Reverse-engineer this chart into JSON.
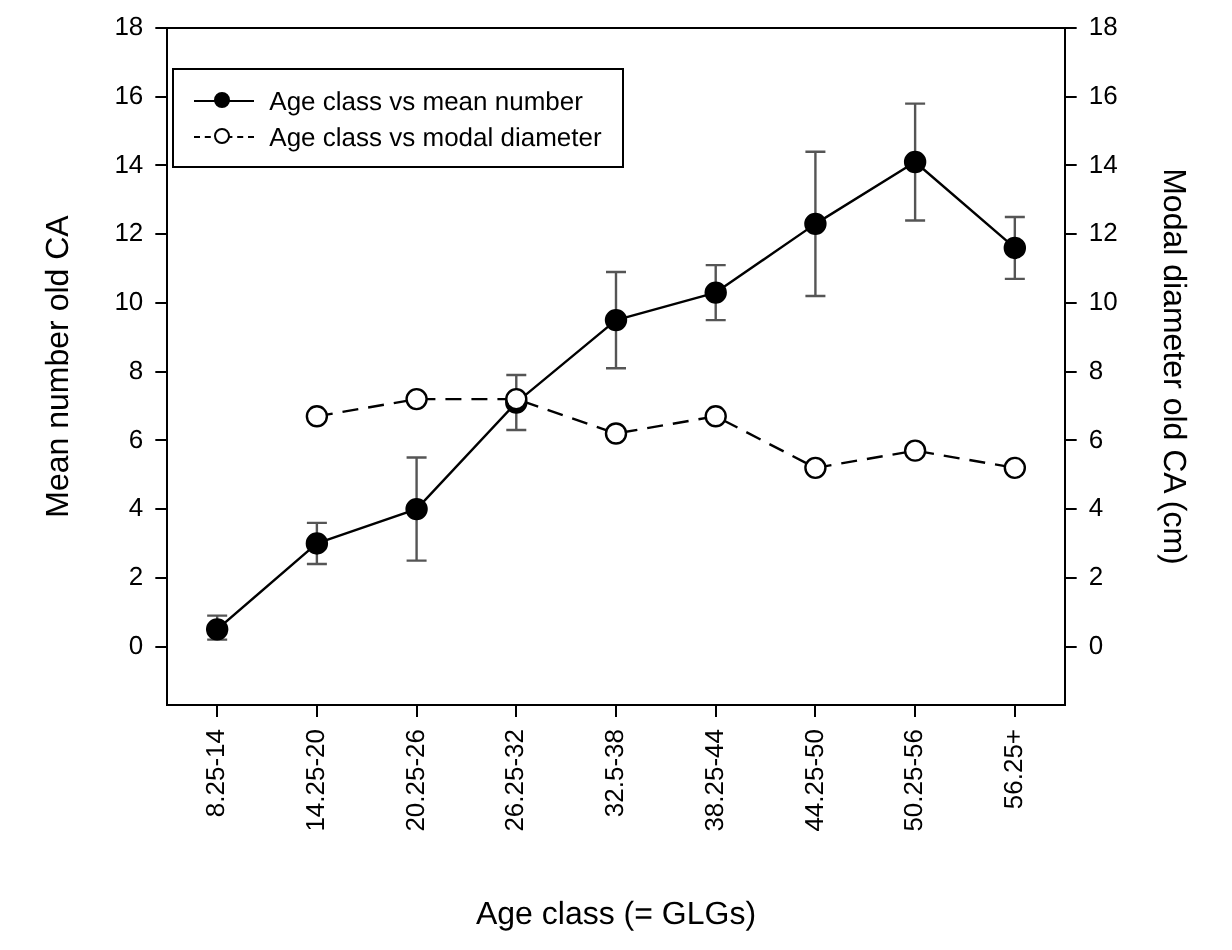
{
  "chart_data": {
    "type": "line",
    "xlabel": "Age class (= GLGs)",
    "ylabel": "Mean number old CA",
    "y2label": "Modal diameter old CA (cm)",
    "categories": [
      "8.25-14",
      "14.25-20",
      "20.25-26",
      "26.25-32",
      "32.5-38",
      "38.25-44",
      "44.25-50",
      "50.25-56",
      "56.25+"
    ],
    "series": [
      {
        "name": "Age class vs mean number",
        "color": "#000000",
        "marker": "circle",
        "line_style": "solid",
        "values": [
          0.5,
          3.0,
          4.0,
          7.1,
          9.5,
          10.3,
          12.3,
          14.1,
          11.6
        ],
        "errors": [
          [
            0.2,
            0.9
          ],
          [
            2.4,
            3.6
          ],
          [
            2.5,
            5.5
          ],
          [
            6.3,
            7.9
          ],
          [
            8.1,
            10.9
          ],
          [
            9.5,
            11.1
          ],
          [
            10.2,
            14.4
          ],
          [
            12.4,
            15.8
          ],
          [
            10.7,
            12.5
          ]
        ]
      },
      {
        "name": "Age class vs modal diameter",
        "color": "#000000",
        "marker": "circle",
        "line_style": "dashed",
        "axis": "y2",
        "values": [
          null,
          6.7,
          7.2,
          7.2,
          6.2,
          6.7,
          5.2,
          5.7,
          5.2
        ]
      }
    ],
    "ylim": [
      -1.7,
      18
    ],
    "yticks": [
      0,
      2,
      4,
      6,
      8,
      10,
      12,
      14,
      16,
      18
    ],
    "y2lim": [
      -1.7,
      18
    ],
    "y2ticks": [
      0,
      2,
      4,
      6,
      8,
      10,
      12,
      14,
      16,
      18
    ],
    "grid": false,
    "legend": "top left"
  }
}
